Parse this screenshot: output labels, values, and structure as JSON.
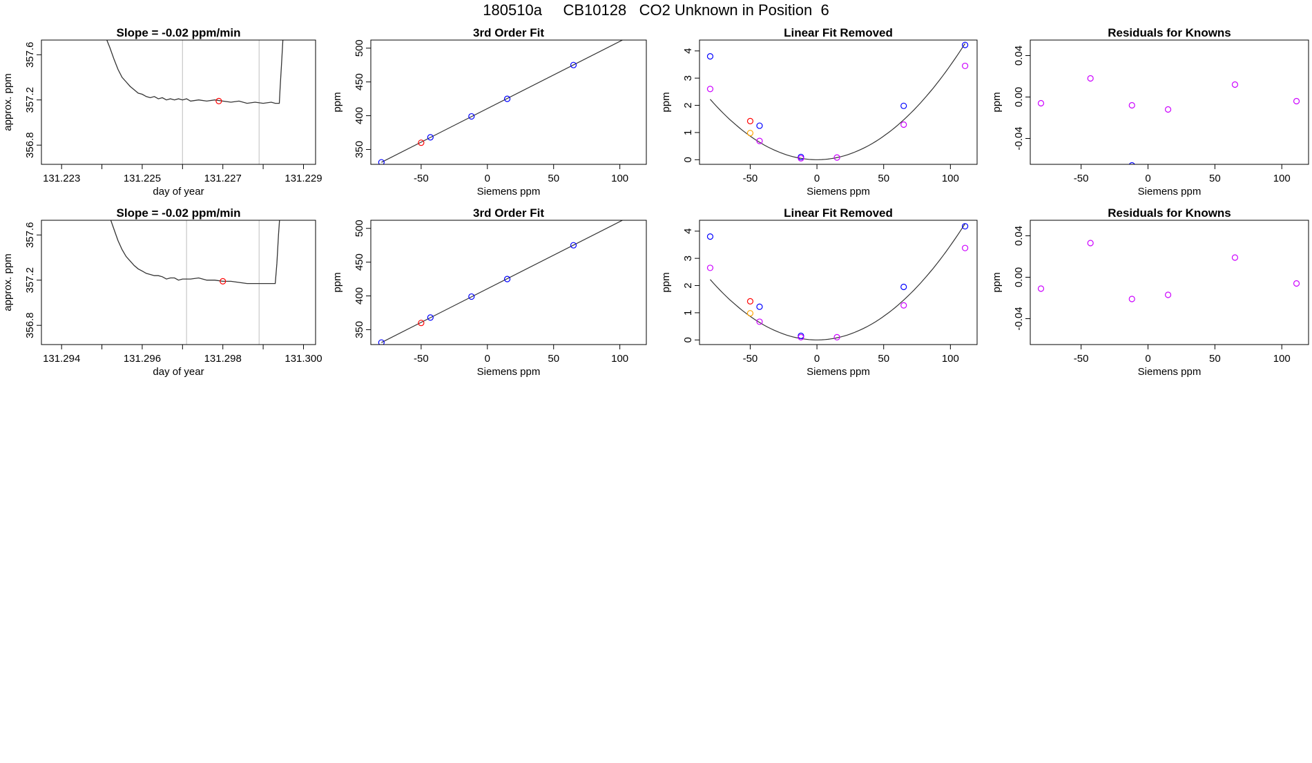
{
  "figure": {
    "title": "180510a     CB10128   CO2 Unknown in Position  6"
  },
  "colors": {
    "axis": "#000000",
    "line": "#333333",
    "vline": "#c8c8c8",
    "known": "#0000ff",
    "unknown": "#ff0000",
    "residual": "#cc00ff",
    "extra": "#ffa500"
  },
  "chart_data": [
    {
      "type": "line",
      "title": "Slope =  -0.02  ppm/min",
      "xlabel": "day of year",
      "ylabel": "approx. ppm",
      "xlim": [
        131.2225,
        131.2293
      ],
      "ylim": [
        356.63,
        357.73
      ],
      "xticks": [
        131.223,
        131.224,
        131.225,
        131.226,
        131.227,
        131.228,
        131.229
      ],
      "xtick_labels": [
        "131.223",
        "",
        "131.225",
        "",
        "131.227",
        "",
        "131.229"
      ],
      "yticks": [
        356.8,
        357.2,
        357.6
      ],
      "ytick_labels": [
        "356.8",
        "357.2",
        "357.6"
      ],
      "grid": false,
      "series": [
        {
          "x": [
            131.2241,
            131.2242,
            131.2243,
            131.2244,
            131.2245,
            131.2246,
            131.2247,
            131.2248,
            131.2249,
            131.225,
            131.2251,
            131.2252,
            131.2253,
            131.2254,
            131.2255,
            131.2256,
            131.2257,
            131.2258,
            131.2259,
            131.226,
            131.2261,
            131.2262,
            131.2264,
            131.2266,
            131.2268,
            131.227,
            131.2272,
            131.2274,
            131.2276,
            131.2278,
            131.228,
            131.2282,
            131.2283,
            131.2284,
            131.22842,
            131.22846,
            131.2285
          ],
          "y": [
            357.75,
            357.66,
            357.56,
            357.47,
            357.4,
            357.36,
            357.32,
            357.29,
            357.26,
            357.25,
            357.23,
            357.22,
            357.23,
            357.21,
            357.22,
            357.2,
            357.21,
            357.2,
            357.21,
            357.2,
            357.21,
            357.19,
            357.2,
            357.19,
            357.2,
            357.19,
            357.18,
            357.19,
            357.17,
            357.18,
            357.17,
            357.18,
            357.17,
            357.17,
            357.3,
            357.55,
            357.8
          ]
        }
      ],
      "vlines": [
        131.226,
        131.2279
      ],
      "points": [
        {
          "x": 131.2269,
          "y": 357.19,
          "color": "unknown"
        }
      ]
    },
    {
      "type": "scatter",
      "title": "3rd Order Fit",
      "xlabel": "Siemens ppm",
      "ylabel": "ppm",
      "xlim": [
        -88,
        120
      ],
      "ylim": [
        328,
        512
      ],
      "xticks": [
        -50,
        0,
        50,
        100
      ],
      "yticks": [
        350,
        400,
        450,
        500
      ],
      "series": [
        {
          "name": "knowns",
          "x": [
            -80,
            -43,
            -12,
            15,
            65,
            111
          ],
          "y": [
            331,
            368,
            399,
            425,
            475,
            521
          ],
          "color": "known"
        },
        {
          "name": "unknown",
          "x": [
            -50
          ],
          "y": [
            360
          ],
          "color": "unknown"
        }
      ],
      "fit_line": {
        "x": [
          -80,
          111
        ],
        "y": [
          331,
          521
        ]
      }
    },
    {
      "type": "scatter",
      "title": "Linear Fit Removed",
      "xlabel": "Siemens ppm",
      "ylabel": "ppm",
      "xlim": [
        -88,
        120
      ],
      "ylim": [
        -0.17,
        4.4
      ],
      "xticks": [
        -50,
        0,
        50,
        100
      ],
      "yticks": [
        0,
        1,
        2,
        3,
        4
      ],
      "curve": {
        "x_min": -80,
        "x_max": 111,
        "a": 0.000347
      },
      "series": [
        {
          "name": "knowns",
          "x": [
            -80,
            -43,
            -12,
            65,
            111
          ],
          "y": [
            3.8,
            1.25,
            0.1,
            1.98,
            4.22
          ],
          "color": "known"
        },
        {
          "name": "residual",
          "x": [
            -80,
            -43,
            -12,
            15,
            65,
            111
          ],
          "y": [
            2.6,
            0.69,
            0.05,
            0.08,
            1.29,
            3.45
          ],
          "color": "residual"
        },
        {
          "name": "unknown",
          "x": [
            -50
          ],
          "y": [
            1.42
          ],
          "color": "unknown"
        },
        {
          "name": "extra",
          "x": [
            -50
          ],
          "y": [
            0.98
          ],
          "color": "extra"
        }
      ]
    },
    {
      "type": "scatter",
      "title": "Residuals for Knowns",
      "xlabel": "Siemens ppm",
      "ylabel": "ppm",
      "xlim": [
        -88,
        120
      ],
      "ylim": [
        -0.065,
        0.055
      ],
      "xticks": [
        -50,
        0,
        50,
        100
      ],
      "yticks": [
        -0.04,
        0,
        0.04
      ],
      "ytick_labels": [
        "-0.04",
        "0.00",
        "0.04"
      ],
      "series": [
        {
          "name": "residual",
          "x": [
            -80,
            -43,
            -12,
            15,
            65,
            111
          ],
          "y": [
            -0.006,
            0.018,
            -0.008,
            -0.012,
            0.012,
            -0.004
          ],
          "color": "residual"
        },
        {
          "name": "knowns",
          "x": [
            -12
          ],
          "y": [
            -0.066
          ],
          "color": "known"
        }
      ]
    },
    {
      "type": "line",
      "title": "Slope =  -0.02  ppm/min",
      "xlabel": "day of year",
      "ylabel": "approx. ppm",
      "xlim": [
        131.2935,
        131.3003
      ],
      "ylim": [
        356.63,
        357.73
      ],
      "xticks": [
        131.294,
        131.295,
        131.296,
        131.297,
        131.298,
        131.299,
        131.3
      ],
      "xtick_labels": [
        "131.294",
        "",
        "131.296",
        "",
        "131.298",
        "",
        "131.300"
      ],
      "yticks": [
        356.8,
        357.2,
        357.6
      ],
      "ytick_labels": [
        "356.8",
        "357.2",
        "357.6"
      ],
      "grid": false,
      "series": [
        {
          "x": [
            131.2952,
            131.2953,
            131.2954,
            131.2955,
            131.2956,
            131.2957,
            131.2958,
            131.2959,
            131.296,
            131.2961,
            131.2962,
            131.2963,
            131.2964,
            131.2965,
            131.2966,
            131.2967,
            131.2968,
            131.2969,
            131.297,
            131.2971,
            131.2972,
            131.2974,
            131.2976,
            131.2978,
            131.298,
            131.2982,
            131.2984,
            131.2986,
            131.2988,
            131.299,
            131.2992,
            131.2993,
            131.29934,
            131.29938,
            131.29942
          ],
          "y": [
            357.75,
            357.65,
            357.55,
            357.47,
            357.41,
            357.37,
            357.33,
            357.3,
            357.28,
            357.26,
            357.25,
            357.24,
            357.24,
            357.23,
            357.21,
            357.22,
            357.22,
            357.2,
            357.21,
            357.21,
            357.21,
            357.22,
            357.2,
            357.2,
            357.19,
            357.19,
            357.18,
            357.17,
            357.17,
            357.17,
            357.17,
            357.17,
            357.35,
            357.6,
            357.8
          ]
        }
      ],
      "vlines": [
        131.2971,
        131.2989
      ],
      "points": [
        {
          "x": 131.298,
          "y": 357.19,
          "color": "unknown"
        }
      ]
    },
    {
      "type": "scatter",
      "title": "3rd Order Fit",
      "xlabel": "Siemens ppm",
      "ylabel": "ppm",
      "xlim": [
        -88,
        120
      ],
      "ylim": [
        328,
        512
      ],
      "xticks": [
        -50,
        0,
        50,
        100
      ],
      "yticks": [
        350,
        400,
        450,
        500
      ],
      "series": [
        {
          "name": "knowns",
          "x": [
            -80,
            -43,
            -12,
            15,
            65,
            111
          ],
          "y": [
            331,
            368,
            399,
            425,
            475,
            521
          ],
          "color": "known"
        },
        {
          "name": "unknown",
          "x": [
            -50
          ],
          "y": [
            360
          ],
          "color": "unknown"
        }
      ],
      "fit_line": {
        "x": [
          -80,
          111
        ],
        "y": [
          331,
          521
        ]
      }
    },
    {
      "type": "scatter",
      "title": "Linear Fit Removed",
      "xlabel": "Siemens ppm",
      "ylabel": "ppm",
      "xlim": [
        -88,
        120
      ],
      "ylim": [
        -0.17,
        4.4
      ],
      "xticks": [
        -50,
        0,
        50,
        100
      ],
      "yticks": [
        0,
        1,
        2,
        3,
        4
      ],
      "curve": {
        "x_min": -80,
        "x_max": 111,
        "a": 0.000347
      },
      "series": [
        {
          "name": "knowns",
          "x": [
            -80,
            -43,
            -12,
            65,
            111
          ],
          "y": [
            3.8,
            1.22,
            0.15,
            1.95,
            4.18
          ],
          "color": "known"
        },
        {
          "name": "residual",
          "x": [
            -80,
            -43,
            -12,
            15,
            65,
            111
          ],
          "y": [
            2.65,
            0.67,
            0.1,
            0.1,
            1.27,
            3.38
          ],
          "color": "residual"
        },
        {
          "name": "unknown",
          "x": [
            -50
          ],
          "y": [
            1.42
          ],
          "color": "unknown"
        },
        {
          "name": "extra",
          "x": [
            -50
          ],
          "y": [
            0.98
          ],
          "color": "extra"
        }
      ]
    },
    {
      "type": "scatter",
      "title": "Residuals for Knowns",
      "xlabel": "Siemens ppm",
      "ylabel": "ppm",
      "xlim": [
        -88,
        120
      ],
      "ylim": [
        -0.065,
        0.055
      ],
      "xticks": [
        -50,
        0,
        50,
        100
      ],
      "yticks": [
        -0.04,
        0,
        0.04
      ],
      "ytick_labels": [
        "-0.04",
        "0.00",
        "0.04"
      ],
      "series": [
        {
          "name": "residual",
          "x": [
            -80,
            -43,
            -12,
            15,
            65,
            111
          ],
          "y": [
            -0.011,
            0.033,
            -0.021,
            -0.017,
            0.019,
            -0.006
          ],
          "color": "residual"
        }
      ]
    }
  ]
}
